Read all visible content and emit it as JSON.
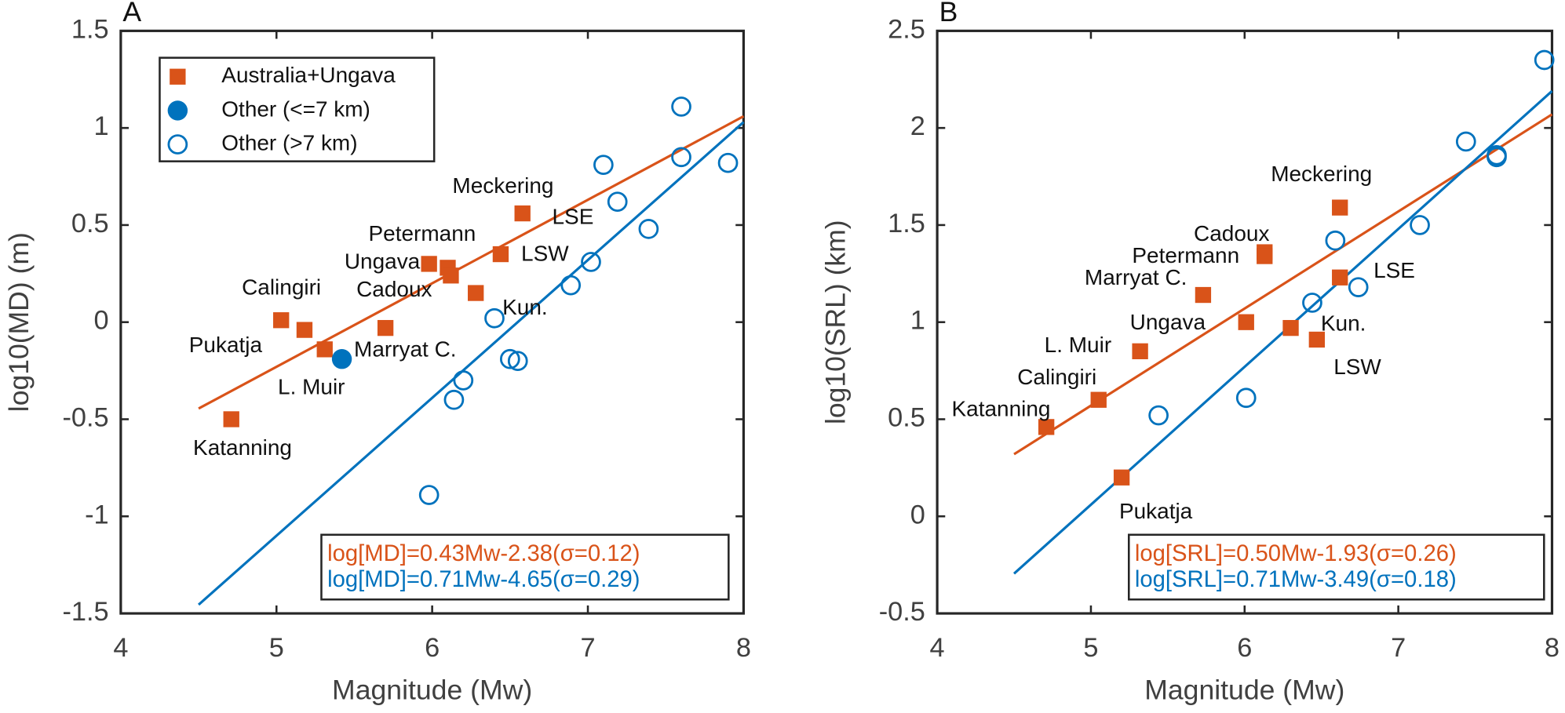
{
  "chart_data": [
    {
      "type": "scatter",
      "panel": "A",
      "xlabel": "Magnitude (Mw)",
      "ylabel": "log10(MD) (m)",
      "xlim": [
        4,
        8
      ],
      "ylim": [
        -1.5,
        1.5
      ],
      "xticks": [
        4,
        5,
        6,
        7,
        8
      ],
      "yticks": [
        1.5,
        1,
        0.5,
        0,
        -0.5,
        -1,
        -1.5
      ],
      "legend": "upper left",
      "series": [
        {
          "name": "Australia+Ungava",
          "color": "#d95319",
          "marker": "square",
          "x": [
            4.71,
            5.03,
            5.18,
            5.31,
            5.7,
            5.98,
            6.1,
            6.12,
            6.28,
            6.44,
            6.58
          ],
          "values": [
            -0.5,
            0.01,
            -0.04,
            -0.14,
            -0.03,
            0.3,
            0.28,
            0.24,
            0.15,
            0.35,
            0.56
          ]
        },
        {
          "name": "Other (<=7 km)",
          "color": "#0072bd",
          "marker": "filled-circle",
          "x": [
            5.42
          ],
          "values": [
            -0.19
          ]
        },
        {
          "name": "Other (>7 km)",
          "color": "#0072bd",
          "marker": "open-circle",
          "x": [
            5.98,
            6.14,
            6.2,
            6.4,
            6.5,
            6.55,
            6.89,
            7.02,
            7.1,
            7.19,
            7.39,
            7.6,
            7.6,
            7.9
          ],
          "values": [
            -0.89,
            -0.4,
            -0.3,
            0.02,
            -0.19,
            -0.2,
            0.19,
            0.31,
            0.81,
            0.62,
            0.48,
            1.11,
            0.85,
            0.82
          ]
        }
      ],
      "fits": [
        {
          "color": "#d95319",
          "slope": 0.43,
          "intercept": -2.38,
          "x_range": [
            4.5,
            8
          ],
          "label": "log[MD]=0.43Mw-2.38(σ=0.12)"
        },
        {
          "color": "#0072bd",
          "slope": 0.71,
          "intercept": -4.65,
          "x_range": [
            4.5,
            8
          ],
          "label": "log[MD]=0.71Mw-4.65(σ=0.29)"
        }
      ],
      "annotations": [
        "Meckering",
        "LSE",
        "Petermann",
        "LSW",
        "Ungava",
        "Calingiri",
        "Cadoux",
        "Kun.",
        "Pukatja",
        "Marryat C.",
        "L. Muir",
        "Katanning"
      ]
    },
    {
      "type": "scatter",
      "panel": "B",
      "xlabel": "Magnitude (Mw)",
      "ylabel": "log10(SRL) (km)",
      "xlim": [
        4,
        8
      ],
      "ylim": [
        -0.5,
        2.5
      ],
      "xticks": [
        4,
        5,
        6,
        7,
        8
      ],
      "yticks": [
        2.5,
        2,
        1.5,
        1,
        0.5,
        0,
        -0.5
      ],
      "series": [
        {
          "color": "#d95319",
          "marker": "square",
          "x": [
            4.71,
            5.05,
            5.2,
            5.32,
            5.73,
            6.01,
            6.13,
            6.13,
            6.3,
            6.47,
            6.62,
            6.62
          ],
          "values": [
            0.46,
            0.6,
            0.2,
            0.85,
            1.14,
            1.0,
            1.36,
            1.34,
            0.97,
            0.91,
            1.23,
            1.59
          ]
        },
        {
          "color": "#0072bd",
          "marker": "open-circle",
          "x": [
            5.44,
            6.01,
            6.44,
            6.59,
            6.74,
            7.14,
            7.44,
            7.64,
            7.64,
            7.95
          ],
          "values": [
            0.52,
            0.61,
            1.1,
            1.42,
            1.18,
            1.5,
            1.93,
            1.85,
            1.86,
            2.35
          ]
        }
      ],
      "fits": [
        {
          "color": "#d95319",
          "slope": 0.5,
          "intercept": -1.93,
          "x_range": [
            4.5,
            8
          ],
          "label": "log[SRL]=0.50Mw-1.93(σ=0.26)"
        },
        {
          "color": "#0072bd",
          "slope": 0.71,
          "intercept": -3.49,
          "x_range": [
            4.5,
            8
          ],
          "label": "log[SRL]=0.71Mw-3.49(σ=0.18)"
        }
      ],
      "annotations": [
        "Meckering",
        "Cadoux",
        "Petermann",
        "Marryat C.",
        "LSE",
        "Ungava",
        "Kun.",
        "L. Muir",
        "LSW",
        "Calingiri",
        "Katanning",
        "Pukatja"
      ]
    }
  ]
}
